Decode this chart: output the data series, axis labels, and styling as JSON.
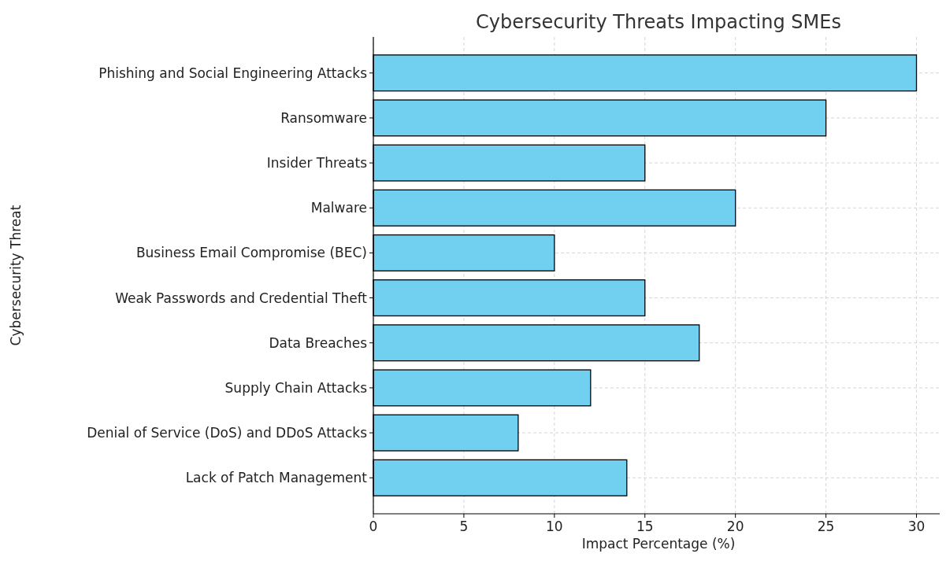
{
  "chart_data": {
    "type": "bar",
    "orientation": "horizontal",
    "title": "Cybersecurity Threats Impacting SMEs",
    "xlabel": "Impact Percentage (%)",
    "ylabel": "Cybersecurity Threat",
    "categories": [
      "Phishing and Social Engineering Attacks",
      "Ransomware",
      "Insider Threats",
      "Malware",
      "Business Email Compromise (BEC)",
      "Weak Passwords and Credential Theft",
      "Data Breaches",
      "Supply Chain Attacks",
      "Denial of Service (DoS) and DDoS Attacks",
      "Lack of Patch Management"
    ],
    "values": [
      30,
      25,
      15,
      20,
      10,
      15,
      18,
      12,
      8,
      14
    ],
    "color": "#71cfef",
    "xlim": [
      0,
      31.5
    ],
    "xticks": [
      0,
      5,
      10,
      15,
      20,
      25,
      30
    ],
    "grid": true
  }
}
